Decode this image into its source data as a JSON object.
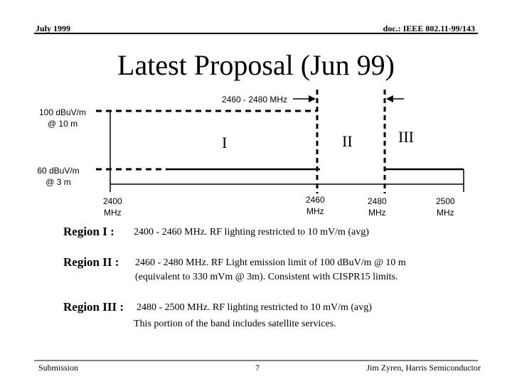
{
  "header": {
    "date": "July 1999",
    "doc": "doc.: IEEE 802.11-99/143"
  },
  "title": "Latest Proposal (Jun 99)",
  "diagram": {
    "band_label": "2460 - 2480 MHz",
    "limit_high": [
      "100 dBuV/m",
      "@ 10 m"
    ],
    "limit_low": [
      "60 dBuV/m",
      "@ 3 m"
    ],
    "regions": [
      "I",
      "II",
      "III"
    ],
    "ticks": [
      [
        "2400",
        "MHz"
      ],
      [
        "2460",
        "MHz"
      ],
      [
        "2480",
        "MHz"
      ],
      [
        "2500",
        "MHz"
      ]
    ]
  },
  "region_descriptions": [
    {
      "label": "Region I :",
      "lines": [
        "2400 - 2460 MHz. RF lighting restricted to 10 mV/m (avg)"
      ]
    },
    {
      "label": "Region II :",
      "lines": [
        "2460 - 2480 MHz. RF Light emission limit of 100 dBuV/m @ 10 m",
        "(equivalent to 330 mVm @ 3m).  Consistent with CISPR15 limits."
      ]
    },
    {
      "label": "Region III :",
      "lines": [
        "2480 - 2500 MHz.  RF lighting restricted to 10 mV/m (avg)",
        "This portion of the band includes satellite services."
      ]
    }
  ],
  "footer": {
    "left": "Submission",
    "page": "7",
    "right": "Jim Zyren, Harris Semiconductor"
  }
}
